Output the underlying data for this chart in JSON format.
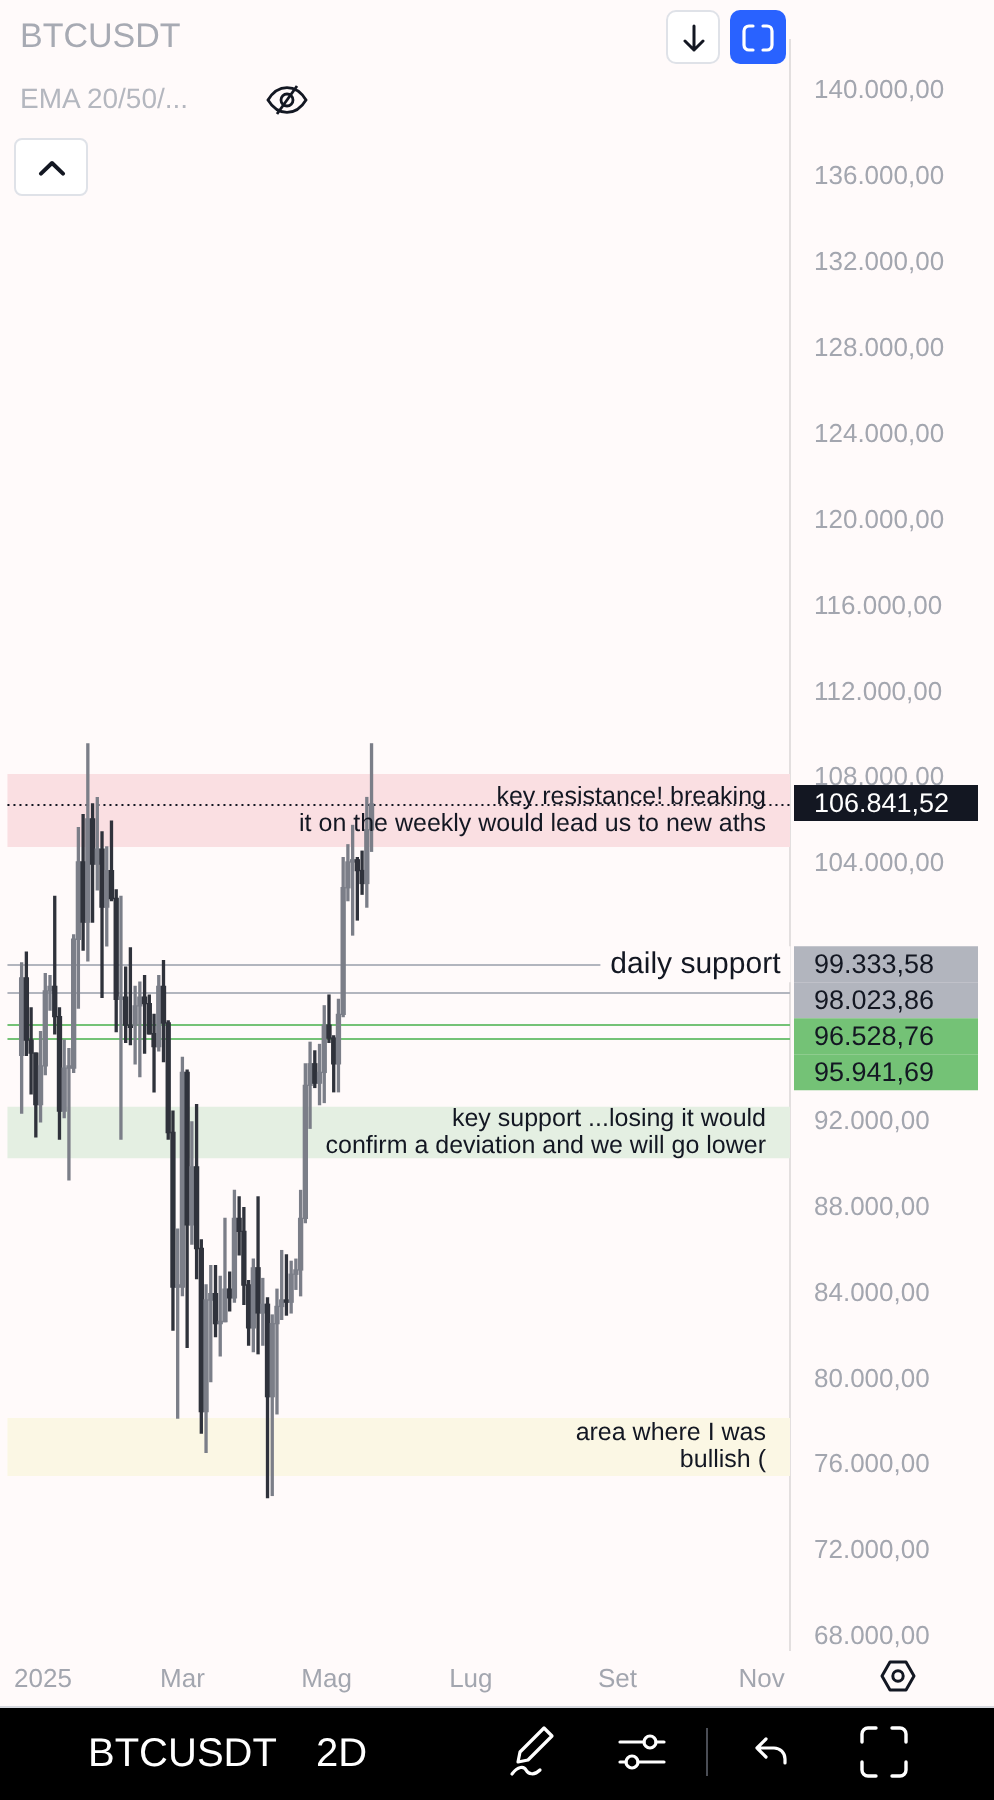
{
  "chart_data": {
    "type": "candlestick",
    "title": "BTCUSDT",
    "annotations": [
      "EMA 20/50/...",
      {
        "text": "daily support",
        "x": "2025-10-04",
        "y": 99333.58
      },
      "BTCUSDT",
      "2D"
    ],
    "x": [
      "2024-12-23",
      "2024-12-25",
      "2024-12-27",
      "2024-12-29",
      "2024-12-31",
      "2025-01-02",
      "2025-01-04",
      "2025-01-06",
      "2025-01-08",
      "2025-01-10",
      "2025-01-12",
      "2025-01-14",
      "2025-01-16",
      "2025-01-18",
      "2025-01-20",
      "2025-01-22",
      "2025-01-24",
      "2025-01-26",
      "2025-01-28",
      "2025-01-30",
      "2025-02-01",
      "2025-02-03",
      "2025-02-05",
      "2025-02-07",
      "2025-02-09",
      "2025-02-11",
      "2025-02-13",
      "2025-02-15",
      "2025-02-17",
      "2025-02-19",
      "2025-02-21",
      "2025-02-23",
      "2025-02-25",
      "2025-02-27",
      "2025-03-01",
      "2025-03-03",
      "2025-03-05",
      "2025-03-07",
      "2025-03-09",
      "2025-03-11",
      "2025-03-13",
      "2025-03-15",
      "2025-03-17",
      "2025-03-19",
      "2025-03-21",
      "2025-03-23",
      "2025-03-25",
      "2025-03-27",
      "2025-03-29",
      "2025-03-31",
      "2025-04-02",
      "2025-04-04",
      "2025-04-06",
      "2025-04-08",
      "2025-04-10",
      "2025-04-12",
      "2025-04-14",
      "2025-04-16",
      "2025-04-18",
      "2025-04-20",
      "2025-04-22",
      "2025-04-24",
      "2025-04-26",
      "2025-04-28",
      "2025-04-30",
      "2025-05-02",
      "2025-05-04",
      "2025-05-06",
      "2025-05-08",
      "2025-05-10",
      "2025-05-12",
      "2025-05-14",
      "2025-05-16",
      "2025-05-18",
      "2025-05-20"
    ],
    "ohlc": [
      [
        95100,
        99400,
        92400,
        98700
      ],
      [
        98700,
        99900,
        95100,
        95800
      ],
      [
        95800,
        97300,
        93300,
        95200
      ],
      [
        95200,
        95200,
        91300,
        92800
      ],
      [
        92800,
        96200,
        92000,
        94600
      ],
      [
        94600,
        98900,
        94200,
        98100
      ],
      [
        98100,
        98800,
        97200,
        98300
      ],
      [
        98300,
        102500,
        96100,
        96900
      ],
      [
        96900,
        97300,
        91200,
        92500
      ],
      [
        92500,
        95800,
        92200,
        94500
      ],
      [
        94500,
        95400,
        89300,
        94600
      ],
      [
        94500,
        100700,
        94300,
        100500
      ],
      [
        100500,
        105700,
        97300,
        104100
      ],
      [
        104100,
        106300,
        100000,
        101300
      ],
      [
        101300,
        109600,
        99500,
        106100
      ],
      [
        106100,
        106800,
        101300,
        104000
      ],
      [
        104000,
        107100,
        102800,
        104700
      ],
      [
        104700,
        105500,
        97800,
        102000
      ],
      [
        102000,
        104800,
        100200,
        103700
      ],
      [
        103700,
        106000,
        102300,
        102400
      ],
      [
        102400,
        102800,
        96200,
        97700
      ],
      [
        97700,
        102500,
        91200,
        97800
      ],
      [
        97800,
        99200,
        95700,
        96500
      ],
      [
        96500,
        100100,
        95600,
        96400
      ],
      [
        96500,
        98300,
        94700,
        97400
      ],
      [
        97400,
        98500,
        94100,
        97800
      ],
      [
        97800,
        98800,
        95200,
        97500
      ],
      [
        97500,
        97900,
        96100,
        96100
      ],
      [
        96100,
        97000,
        93400,
        95500
      ],
      [
        95500,
        98800,
        95300,
        98300
      ],
      [
        98300,
        99500,
        94800,
        96600
      ],
      [
        96600,
        96700,
        91200,
        91500
      ],
      [
        91500,
        92500,
        82300,
        84300
      ],
      [
        84300,
        87000,
        78200,
        84400
      ],
      [
        84300,
        95000,
        83900,
        94300
      ],
      [
        94300,
        94400,
        81500,
        87200
      ],
      [
        87200,
        92000,
        86300,
        89900
      ],
      [
        89900,
        92800,
        84700,
        86100
      ],
      [
        86100,
        86500,
        77500,
        78500
      ],
      [
        78500,
        84400,
        76600,
        83700
      ],
      [
        83700,
        85300,
        79900,
        84000
      ],
      [
        84000,
        85300,
        82000,
        82600
      ],
      [
        82600,
        84800,
        81100,
        82700
      ],
      [
        82700,
        87500,
        82700,
        84200
      ],
      [
        84200,
        85000,
        83200,
        83800
      ],
      [
        83800,
        88800,
        83600,
        87500
      ],
      [
        87500,
        88500,
        85800,
        86900
      ],
      [
        86900,
        88000,
        83500,
        84400
      ],
      [
        84400,
        84600,
        81600,
        82400
      ],
      [
        82400,
        85600,
        81300,
        85200
      ],
      [
        85200,
        88500,
        81200,
        83100
      ],
      [
        83100,
        84700,
        81600,
        83500
      ],
      [
        83500,
        83800,
        74500,
        79200
      ],
      [
        79200,
        83000,
        74600,
        82600
      ],
      [
        82600,
        84200,
        78400,
        83400
      ],
      [
        83400,
        86000,
        82800,
        83700
      ],
      [
        83700,
        85800,
        83000,
        83600
      ],
      [
        83600,
        85500,
        83100,
        84900
      ],
      [
        84900,
        85600,
        84200,
        85100
      ],
      [
        85100,
        88800,
        83900,
        87500
      ],
      [
        87500,
        94700,
        87300,
        93700
      ],
      [
        93700,
        95700,
        91700,
        94700
      ],
      [
        94700,
        95300,
        93600,
        93800
      ],
      [
        93800,
        95600,
        92800,
        94300
      ],
      [
        94300,
        97400,
        92900,
        96500
      ],
      [
        96500,
        97900,
        95700,
        95900
      ],
      [
        95900,
        96000,
        93400,
        94700
      ],
      [
        94700,
        97700,
        93400,
        97000
      ],
      [
        97000,
        104300,
        96900,
        102900
      ],
      [
        102900,
        104900,
        102300,
        104100
      ],
      [
        104100,
        105800,
        100700,
        104200
      ],
      [
        104200,
        104300,
        101400,
        103700
      ],
      [
        103700,
        104600,
        102600,
        103100
      ],
      [
        103100,
        107100,
        102000,
        105600
      ],
      [
        105600,
        109600,
        104600,
        106800
      ]
    ],
    "colors": [
      "#7b7e88",
      "#2f323b",
      "#2f323b",
      "#2f323b",
      "#7b7e88",
      "#7b7e88",
      "#7b7e88",
      "#2f323b",
      "#2f323b",
      "#7b7e88",
      "#7b7e88",
      "#7b7e88",
      "#7b7e88",
      "#2f323b",
      "#7b7e88",
      "#2f323b",
      "#7b7e88",
      "#2f323b",
      "#7b7e88",
      "#2f323b",
      "#2f323b",
      "#7b7e88",
      "#2f323b",
      "#2f323b",
      "#7b7e88",
      "#7b7e88",
      "#2f323b",
      "#2f323b",
      "#2f323b",
      "#7b7e88",
      "#2f323b",
      "#2f323b",
      "#2f323b",
      "#7b7e88",
      "#7b7e88",
      "#2f323b",
      "#7b7e88",
      "#2f323b",
      "#2f323b",
      "#7b7e88",
      "#7b7e88",
      "#2f323b",
      "#7b7e88",
      "#7b7e88",
      "#2f323b",
      "#7b7e88",
      "#2f323b",
      "#2f323b",
      "#2f323b",
      "#7b7e88",
      "#2f323b",
      "#7b7e88",
      "#2f323b",
      "#7b7e88",
      "#7b7e88",
      "#7b7e88",
      "#2f323b",
      "#7b7e88",
      "#7b7e88",
      "#7b7e88",
      "#7b7e88",
      "#7b7e88",
      "#2f323b",
      "#7b7e88",
      "#7b7e88",
      "#2f323b",
      "#2f323b",
      "#7b7e88",
      "#7b7e88",
      "#7b7e88",
      "#7b7e88",
      "#2f323b",
      "#2f323b",
      "#7b7e88",
      "#7b7e88"
    ],
    "xlim": [
      "2024-12-17",
      "2025-11-13"
    ],
    "xticks": [
      {
        "value": "2025-01-01",
        "label": "2025"
      },
      {
        "value": "2025-03-01",
        "label": "Mar"
      },
      {
        "value": "2025-05-01",
        "label": "Mag"
      },
      {
        "value": "2025-07-01",
        "label": "Lug"
      },
      {
        "value": "2025-09-01",
        "label": "Set"
      },
      {
        "value": "2025-11-01",
        "label": "Nov"
      }
    ],
    "ylim": [
      67400,
      142400
    ],
    "yticks": [
      {
        "value": 68000,
        "label": "68.000,00"
      },
      {
        "value": 72000,
        "label": "72.000,00"
      },
      {
        "value": 76000,
        "label": "76.000,00"
      },
      {
        "value": 80000,
        "label": "80.000,00"
      },
      {
        "value": 84000,
        "label": "84.000,00"
      },
      {
        "value": 88000,
        "label": "88.000,00"
      },
      {
        "value": 92000,
        "label": "92.000,00"
      },
      {
        "value": 104000,
        "label": "104.000,00"
      },
      {
        "value": 108000,
        "label": "108.000,00"
      },
      {
        "value": 112000,
        "label": "112.000,00"
      },
      {
        "value": 116000,
        "label": "116.000,00"
      },
      {
        "value": 120000,
        "label": "120.000,00"
      },
      {
        "value": 124000,
        "label": "124.000,00"
      },
      {
        "value": 128000,
        "label": "128.000,00"
      },
      {
        "value": 132000,
        "label": "132.000,00"
      },
      {
        "value": 136000,
        "label": "136.000,00"
      },
      {
        "value": 140000,
        "label": "140.000,00"
      }
    ],
    "ref_lines": [
      {
        "axis": "y",
        "value": 106841.52,
        "label": "106.841,52",
        "color": "#131722",
        "line_style": "dotted"
      },
      {
        "axis": "y",
        "value": 99333.58,
        "label": "99.333,58",
        "color": "#b2b5be",
        "line_style": "solid"
      },
      {
        "axis": "y",
        "value": 98023.86,
        "label": "98.023,86",
        "color": "#b2b5be",
        "line_style": "solid"
      },
      {
        "axis": "y",
        "value": 96528.76,
        "label": "96.528,76",
        "color": "#74c276",
        "line_style": "solid"
      },
      {
        "axis": "y",
        "value": 95941.69,
        "label": "95.941,69",
        "color": "#74c276",
        "line_style": "solid"
      }
    ],
    "bands": [
      {
        "axis": "y",
        "from": 104800,
        "to": 108200,
        "label": "key resistance! breaking\nit on the weekly would lead us to new aths",
        "color": "#fadfe2"
      },
      {
        "axis": "y",
        "from": 90300,
        "to": 92700,
        "label": "key support ...losing it would\nconfirm a deviation and we will go lower",
        "color": "#e4efe2"
      },
      {
        "axis": "y",
        "from": 75500,
        "to": 78200,
        "label": "area where I was\nbullish (",
        "color": "#fbf7e4"
      }
    ]
  }
}
